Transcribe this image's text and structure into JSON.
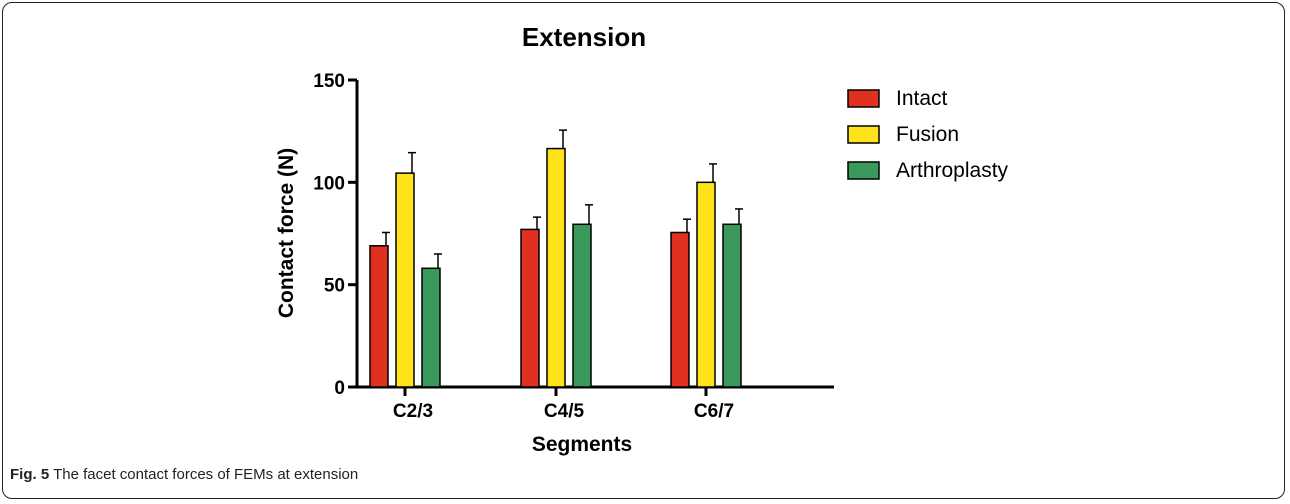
{
  "caption": {
    "label": "Fig. 5",
    "text": "The facet contact forces of FEMs at extension"
  },
  "chart_data": {
    "type": "bar",
    "title": "Extension",
    "xlabel": "Segments",
    "ylabel": "Contact force (N)",
    "ylim": [
      0,
      150
    ],
    "yticks": [
      0,
      50,
      100,
      150
    ],
    "categories": [
      "C2/3",
      "C4/5",
      "C6/7"
    ],
    "legend_position": "right",
    "series": [
      {
        "name": "Intact",
        "color": "#e03020",
        "values": [
          69,
          77,
          75.5
        ],
        "errors": [
          6.5,
          6,
          6.5
        ]
      },
      {
        "name": "Fusion",
        "color": "#ffe21a",
        "values": [
          104.5,
          116.5,
          100
        ],
        "errors": [
          10,
          9,
          9
        ]
      },
      {
        "name": "Arthroplasty",
        "color": "#3a9a5c",
        "values": [
          58,
          79.5,
          79.5
        ],
        "errors": [
          7,
          9.5,
          7.5
        ]
      }
    ]
  }
}
